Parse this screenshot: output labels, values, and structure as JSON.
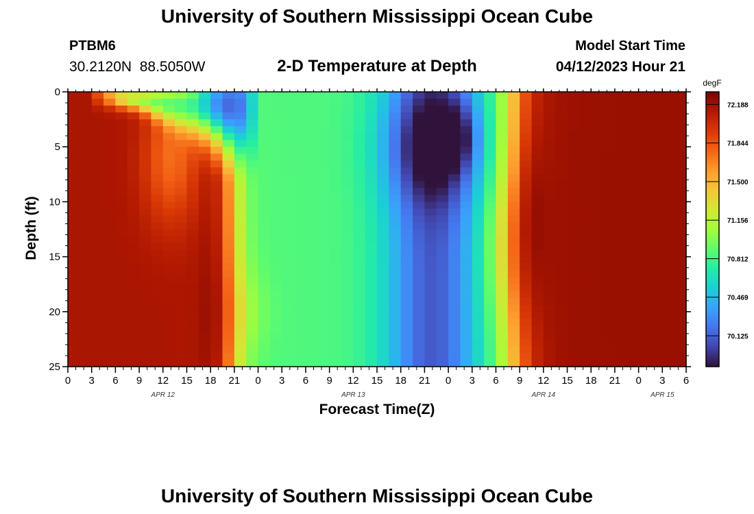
{
  "header": {
    "title": "University of Southern Mississippi Ocean Cube",
    "station": "PTBM6",
    "coords": "30.2120N  88.5050W",
    "subtitle": "2-D Temperature at Depth",
    "model_start_label": "Model Start Time",
    "model_start_value": "04/12/2023 Hour 21"
  },
  "footer": {
    "title": "University of Southern Mississippi Ocean Cube"
  },
  "chart_data": {
    "type": "heatmap",
    "title": "2-D Temperature at Depth",
    "xlabel": "Forecast Time(Z)",
    "ylabel": "Depth (ft)",
    "xlim": [
      0,
      78
    ],
    "ylim": [
      25,
      0
    ],
    "x_ticks": [
      {
        "h": 0,
        "label": "0"
      },
      {
        "h": 3,
        "label": "3"
      },
      {
        "h": 6,
        "label": "6"
      },
      {
        "h": 9,
        "label": "9"
      },
      {
        "h": 12,
        "label": "12"
      },
      {
        "h": 15,
        "label": "15"
      },
      {
        "h": 18,
        "label": "18"
      },
      {
        "h": 21,
        "label": "21"
      },
      {
        "h": 24,
        "label": "0"
      },
      {
        "h": 27,
        "label": "3"
      },
      {
        "h": 30,
        "label": "6"
      },
      {
        "h": 33,
        "label": "9"
      },
      {
        "h": 36,
        "label": "12"
      },
      {
        "h": 39,
        "label": "15"
      },
      {
        "h": 42,
        "label": "18"
      },
      {
        "h": 45,
        "label": "21"
      },
      {
        "h": 48,
        "label": "0"
      },
      {
        "h": 51,
        "label": "3"
      },
      {
        "h": 54,
        "label": "6"
      },
      {
        "h": 57,
        "label": "9"
      },
      {
        "h": 60,
        "label": "12"
      },
      {
        "h": 63,
        "label": "15"
      },
      {
        "h": 66,
        "label": "18"
      },
      {
        "h": 69,
        "label": "21"
      },
      {
        "h": 72,
        "label": "0"
      },
      {
        "h": 75,
        "label": "3"
      },
      {
        "h": 78,
        "label": "6"
      }
    ],
    "y_ticks": [
      {
        "d": 0,
        "label": "0"
      },
      {
        "d": 5,
        "label": "5"
      },
      {
        "d": 10,
        "label": "10"
      },
      {
        "d": 15,
        "label": "15"
      },
      {
        "d": 20,
        "label": "20"
      },
      {
        "d": 25,
        "label": "25"
      }
    ],
    "date_labels": [
      {
        "h": 12,
        "label": "APR 12"
      },
      {
        "h": 36,
        "label": "APR 13"
      },
      {
        "h": 60,
        "label": "APR 14"
      },
      {
        "h": 75,
        "label": "APR 15"
      }
    ],
    "colorbar": {
      "units": "degF",
      "min": 69.85,
      "max": 72.3,
      "tick_values": [
        72.188,
        71.844,
        71.5,
        71.156,
        70.812,
        70.469,
        70.125
      ],
      "tick_labels": [
        "72.188",
        "71.844",
        "71.500",
        "71.156",
        "70.812",
        "70.469",
        "70.125"
      ],
      "colormap": [
        "#30123b",
        "#4145ab",
        "#4675ed",
        "#39a2fc",
        "#1bcfd4",
        "#24eca6",
        "#61fc6c",
        "#a4fc3b",
        "#d1e834",
        "#f3c63a",
        "#fe9b2d",
        "#f36315",
        "#d93806",
        "#b11901",
        "#7a0402"
      ]
    },
    "grid": false,
    "cell_hours": 1.5,
    "cell_depth_ft": 0.625
  }
}
